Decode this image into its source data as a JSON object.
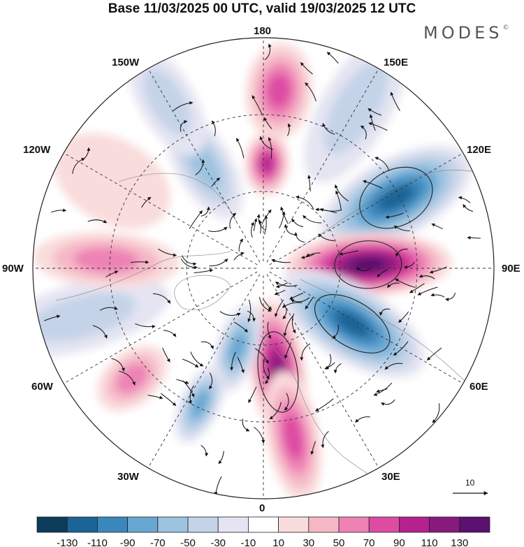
{
  "title": "Base 11/03/2025 00 UTC, valid 19/03/2025 12 UTC",
  "brand": "MODES",
  "brand_mark": "©",
  "longitude_labels": {
    "lon_180": "180",
    "lon_150e": "150E",
    "lon_120e": "120E",
    "lon_90e": "90E",
    "lon_60e": "60E",
    "lon_30e": "30E",
    "lon_0": "0",
    "lon_30w": "30W",
    "lon_60w": "60W",
    "lon_90w": "90W",
    "lon_120w": "120W",
    "lon_150w": "150W"
  },
  "reference_vector": {
    "value": "10"
  },
  "colorbar": {
    "tick_labels": [
      "-130",
      "-110",
      "-90",
      "-70",
      "-50",
      "-30",
      "-10",
      "10",
      "30",
      "50",
      "70",
      "90",
      "110",
      "130"
    ],
    "colors": [
      "#0d3b5a",
      "#1a6496",
      "#3a87bd",
      "#67a7d2",
      "#9cc3e0",
      "#c4d3e8",
      "#e4e4f2",
      "#ffffff",
      "#f9dcdc",
      "#f5b7c6",
      "#ee82b5",
      "#dd4ca3",
      "#b5218d",
      "#861a7d",
      "#5a1170"
    ]
  },
  "anomaly_lobes": [
    {
      "lon": 175,
      "sign": 1,
      "level": 4
    },
    {
      "lon": 178,
      "sign": 1,
      "level": 5
    },
    {
      "lon": 150,
      "sign": -1,
      "level": 2
    },
    {
      "lon": 118,
      "sign": -1,
      "level": 6
    },
    {
      "lon": 92,
      "sign": 1,
      "level": 7
    },
    {
      "lon": 58,
      "sign": -1,
      "level": 6
    },
    {
      "lon": 8,
      "sign": 1,
      "level": 6
    },
    {
      "lon": 10,
      "sign": 1,
      "level": 4
    },
    {
      "lon": -18,
      "sign": -1,
      "level": 4
    },
    {
      "lon": -25,
      "sign": -1,
      "level": 4
    },
    {
      "lon": -50,
      "sign": 1,
      "level": 3
    },
    {
      "lon": -75,
      "sign": -1,
      "level": 2
    },
    {
      "lon": -93,
      "sign": 1,
      "level": 3
    },
    {
      "lon": -120,
      "sign": 1,
      "level": 1
    },
    {
      "lon": -150,
      "sign": -1,
      "level": 3
    },
    {
      "lon": -150,
      "sign": -1,
      "level": 2
    }
  ]
}
